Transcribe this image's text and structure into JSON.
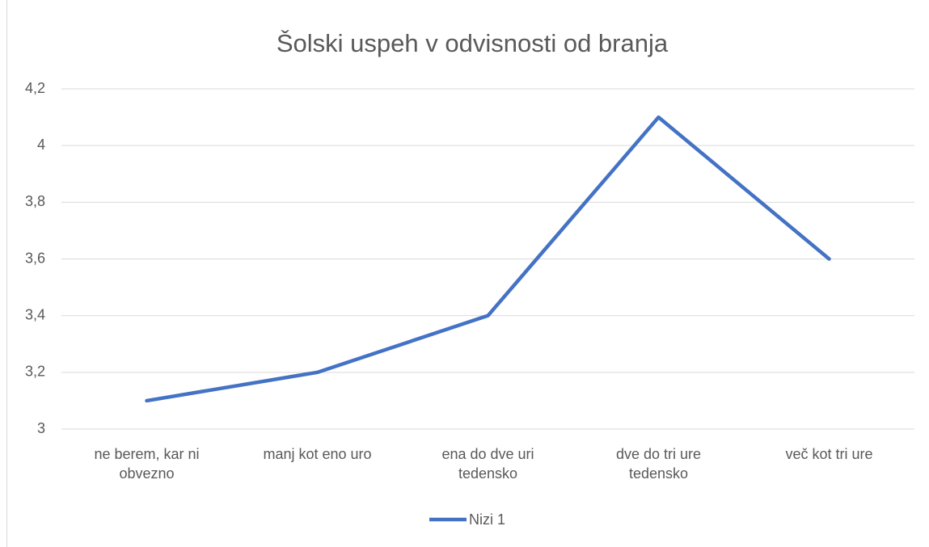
{
  "chart_data": {
    "type": "line",
    "title": "Šolski uspeh v odvisnosti od branja",
    "categories": [
      "ne berem, kar ni obvezno",
      "manj kot eno uro",
      "ena do dve uri tedensko",
      "dve do tri ure tedensko",
      "več kot tri ure"
    ],
    "series": [
      {
        "name": "Nizi 1",
        "color": "#4472c4",
        "values": [
          3.1,
          3.2,
          3.4,
          4.1,
          3.6
        ]
      }
    ],
    "ylim": [
      3,
      4.2
    ],
    "yticks": [
      3,
      {
        "value": 3.2,
        "label": "3,2"
      },
      {
        "value": 3.4,
        "label": "3,4"
      },
      {
        "value": 3.6,
        "label": "3,6"
      },
      {
        "value": 3.8,
        "label": "3,8"
      },
      4,
      {
        "value": 4.2,
        "label": "4,2"
      }
    ],
    "grid": true,
    "legend": "bottom"
  }
}
